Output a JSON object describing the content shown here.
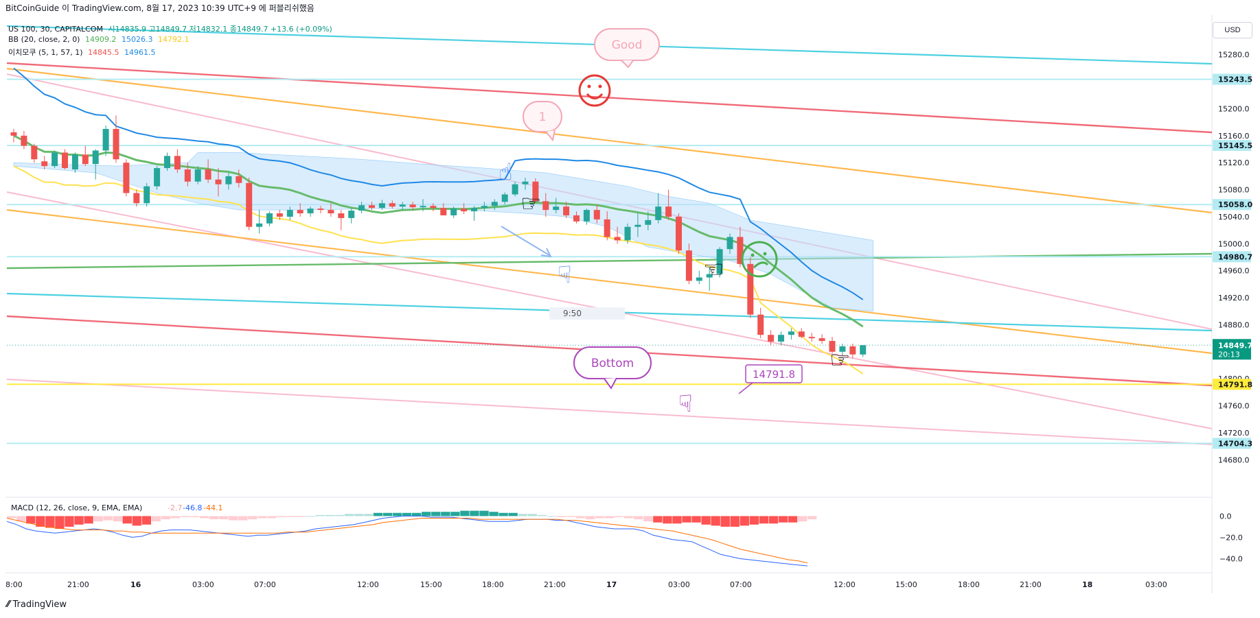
{
  "attribution": "BitCoinGuide 이 TradingView.com, 8월 17, 2023 10:39 UTC+9 에 퍼블리쉬했음",
  "header": {
    "symbol": "US 100, 30, CAPITALCOM",
    "ohlc": "시14835.9  고14849.7  저14832.1  종14849.7  +13.6 (+0.09%)",
    "bb_label": "BB (20, close, 2, 0)",
    "bb_values": [
      "14909.2",
      "15026.3",
      "14792.1"
    ],
    "ichi_label": "이치모쿠 (5, 1, 57, 1)",
    "ichi_values": [
      "14845.5",
      "14961.5"
    ]
  },
  "currency_button": "USD",
  "logo_text": "TradingView",
  "colors": {
    "up": "#26a69a",
    "down": "#ef5350",
    "bb_basis": "#66bb6a",
    "bb_upper": "#1e88e5",
    "bb_lower": "#ffeb3b",
    "cloud": "#bbdefb",
    "cyan": "#4dd0e1",
    "red": "#f06a78",
    "orange": "#ffb74d",
    "pink": "#f8bbd0",
    "green": "#66bb6a",
    "yellow": "#ffeb3b",
    "macd_line": "#2962ff",
    "signal_line": "#ff6d00",
    "purple": "#ab47bc"
  },
  "chart_data": {
    "type": "candlestick",
    "price_axis": {
      "ticks": [
        "15280.0",
        "15240.0",
        "15200.0",
        "15160.0",
        "15120.0",
        "15080.0",
        "15040.0",
        "15000.0",
        "14960.0",
        "14920.0",
        "14880.0",
        "14840.0",
        "14800.0",
        "14760.0",
        "14720.0",
        "14680.0"
      ],
      "range": [
        14660,
        15320
      ]
    },
    "highlighted_levels": [
      {
        "label": "15243.5",
        "value": 15243.5,
        "bg": "#b2ebf2"
      },
      {
        "label": "15145.5",
        "value": 15145.5,
        "bg": "#b2ebf2"
      },
      {
        "label": "15058.0",
        "value": 15058.0,
        "bg": "#b2ebf2"
      },
      {
        "label": "14980.7",
        "value": 14980.7,
        "bg": "#b2ebf2"
      },
      {
        "label": "14791.8",
        "value": 14791.8,
        "bg": "#ffeb3b"
      },
      {
        "label": "14704.3",
        "value": 14704.3,
        "bg": "#b2ebf2"
      }
    ],
    "last_price": {
      "label": "14849.7",
      "countdown": "20:13",
      "value": 14849.7
    },
    "time_axis": [
      "8:00",
      "21:00",
      "16",
      "03:00",
      "07:00",
      "12:00",
      "15:00",
      "18:00",
      "21:00",
      "17",
      "03:00",
      "07:00",
      "12:00",
      "15:00",
      "18:00",
      "21:00",
      "18",
      "03:00"
    ],
    "candles": [
      [
        15165,
        15170,
        15150,
        15160
      ],
      [
        15160,
        15167,
        15140,
        15145
      ],
      [
        15145,
        15148,
        15120,
        15125
      ],
      [
        15122,
        15130,
        15110,
        15115
      ],
      [
        15115,
        15138,
        15112,
        15135
      ],
      [
        15135,
        15140,
        15110,
        15112
      ],
      [
        15110,
        15135,
        15105,
        15132
      ],
      [
        15132,
        15145,
        15115,
        15118
      ],
      [
        15118,
        15140,
        15095,
        15138
      ],
      [
        15138,
        15175,
        15130,
        15170
      ],
      [
        15170,
        15190,
        15120,
        15125
      ],
      [
        15120,
        15125,
        15070,
        15075
      ],
      [
        15075,
        15080,
        15055,
        15060
      ],
      [
        15060,
        15090,
        15055,
        15085
      ],
      [
        15085,
        15115,
        15080,
        15112
      ],
      [
        15112,
        15135,
        15108,
        15130
      ],
      [
        15130,
        15140,
        15105,
        15110
      ],
      [
        15110,
        15120,
        15085,
        15092
      ],
      [
        15092,
        15115,
        15088,
        15110
      ],
      [
        15110,
        15125,
        15090,
        15095
      ],
      [
        15095,
        15112,
        15070,
        15088
      ],
      [
        15088,
        15105,
        15080,
        15100
      ],
      [
        15100,
        15110,
        15083,
        15090
      ],
      [
        15090,
        15098,
        15020,
        15025
      ],
      [
        15025,
        15050,
        15015,
        15030
      ],
      [
        15030,
        15048,
        15026,
        15045
      ],
      [
        15045,
        15050,
        15035,
        15040
      ],
      [
        15040,
        15055,
        15035,
        15050
      ],
      [
        15050,
        15060,
        15040,
        15045
      ],
      [
        15045,
        15055,
        15040,
        15052
      ],
      [
        15052,
        15056,
        15045,
        15050
      ],
      [
        15050,
        15060,
        15040,
        15045
      ],
      [
        15045,
        15050,
        15020,
        15038
      ],
      [
        15038,
        15052,
        15030,
        15049
      ],
      [
        15049,
        15062,
        15045,
        15057
      ],
      [
        15057,
        15062,
        15050,
        15053
      ],
      [
        15053,
        15065,
        15050,
        15060
      ],
      [
        15060,
        15064,
        15052,
        15055
      ],
      [
        15055,
        15062,
        15050,
        15058
      ],
      [
        15058,
        15062,
        15050,
        15054
      ],
      [
        15054,
        15066,
        15048,
        15056
      ],
      [
        15056,
        15060,
        15048,
        15053
      ],
      [
        15053,
        15060,
        15045,
        15042
      ],
      [
        15042,
        15055,
        15038,
        15052
      ],
      [
        15052,
        15060,
        15044,
        15048
      ],
      [
        15048,
        15056,
        15034,
        15053
      ],
      [
        15053,
        15062,
        15048,
        15056
      ],
      [
        15056,
        15066,
        15050,
        15062
      ],
      [
        15062,
        15076,
        15058,
        15073
      ],
      [
        15073,
        15092,
        15070,
        15088
      ],
      [
        15088,
        15098,
        15080,
        15092
      ],
      [
        15092,
        15097,
        15060,
        15063
      ],
      [
        15063,
        15075,
        15040,
        15050
      ],
      [
        15050,
        15068,
        15045,
        15055
      ],
      [
        15055,
        15062,
        15038,
        15042
      ],
      [
        15042,
        15048,
        15030,
        15033
      ],
      [
        15033,
        15052,
        15028,
        15050
      ],
      [
        15050,
        15058,
        15030,
        15036
      ],
      [
        15036,
        15048,
        15005,
        15010
      ],
      [
        15010,
        15025,
        15000,
        15005
      ],
      [
        15005,
        15030,
        15000,
        15025
      ],
      [
        15025,
        15045,
        15010,
        15028
      ],
      [
        15028,
        15048,
        15020,
        15035
      ],
      [
        15035,
        15075,
        15030,
        15055
      ],
      [
        15055,
        15080,
        15035,
        15040
      ],
      [
        15040,
        15045,
        14985,
        14990
      ],
      [
        14990,
        15000,
        14940,
        14945
      ],
      [
        14945,
        14960,
        14940,
        14950
      ],
      [
        14950,
        14965,
        14930,
        14955
      ],
      [
        14955,
        14995,
        14950,
        14992
      ],
      [
        14992,
        15015,
        14985,
        15010
      ],
      [
        15010,
        15025,
        14965,
        14970
      ],
      [
        14970,
        14980,
        14890,
        14895
      ],
      [
        14895,
        14905,
        14860,
        14865
      ],
      [
        14865,
        14872,
        14850,
        14855
      ],
      [
        14855,
        14870,
        14850,
        14865
      ],
      [
        14865,
        14875,
        14858,
        14870
      ],
      [
        14870,
        14875,
        14860,
        14862
      ],
      [
        14862,
        14868,
        14855,
        14860
      ],
      [
        14860,
        14866,
        14852,
        14856
      ],
      [
        14856,
        14862,
        14838,
        14840
      ],
      [
        14840,
        14852,
        14835,
        14848
      ],
      [
        14848,
        14852,
        14830,
        14836
      ],
      [
        14835.9,
        14849.7,
        14832.1,
        14849.7
      ]
    ],
    "macd": {
      "label": "MACD (12, 26, close, 9, EMA, EMA)",
      "values": [
        "-2.7",
        "-46.8",
        "-44.1"
      ],
      "ticks": [
        "0.0",
        "−20.0",
        "−40.0"
      ],
      "hist": [
        -2,
        -5,
        -7,
        -10,
        -11,
        -12,
        -10,
        -8,
        -7,
        -5,
        -4,
        -5,
        -7,
        -9,
        -8,
        -5,
        -3,
        -2,
        -1,
        -1,
        -2,
        -3,
        -3,
        -4,
        -4,
        -3,
        -2,
        -2,
        -1,
        -1,
        -1,
        0,
        1,
        1,
        1,
        2,
        2,
        2,
        3,
        3,
        3,
        3,
        3,
        4,
        4,
        4,
        4,
        5,
        5,
        5,
        4,
        3,
        3,
        2,
        2,
        1,
        0,
        -1,
        -1,
        -2,
        -3,
        -2,
        -2,
        -1,
        -2,
        -3,
        -5,
        -6,
        -7,
        -7,
        -6,
        -6,
        -8,
        -9,
        -10,
        -10,
        -9,
        -8,
        -7,
        -7,
        -6,
        -6,
        -5,
        -3
      ],
      "macd_line": [
        -5,
        -8,
        -12,
        -14,
        -15,
        -16,
        -15,
        -14,
        -13,
        -12,
        -13,
        -15,
        -18,
        -20,
        -19,
        -16,
        -14,
        -13,
        -13,
        -13,
        -14,
        -15,
        -16,
        -17,
        -18,
        -19,
        -18,
        -18,
        -17,
        -16,
        -15,
        -14,
        -12,
        -11,
        -10,
        -9,
        -8,
        -6,
        -4,
        -2,
        -1,
        0,
        0,
        0,
        -1,
        -1,
        -1,
        -2,
        -3,
        -4,
        -5,
        -5,
        -5,
        -4,
        -3,
        -3,
        -3,
        -4,
        -4,
        -6,
        -8,
        -10,
        -11,
        -12,
        -12,
        -12,
        -14,
        -18,
        -20,
        -22,
        -23,
        -24,
        -28,
        -32,
        -36,
        -38,
        -40,
        -41,
        -42,
        -43,
        -44,
        -45,
        -46,
        -46.8
      ],
      "signal_line": [
        -2,
        -4,
        -6,
        -8,
        -10,
        -11,
        -12,
        -13,
        -13,
        -13,
        -13,
        -14,
        -14,
        -15,
        -15,
        -16,
        -16,
        -16,
        -16,
        -16,
        -16,
        -16,
        -16,
        -16,
        -16,
        -16,
        -16,
        -16,
        -16,
        -15,
        -15,
        -15,
        -14,
        -13,
        -12,
        -11,
        -10,
        -9,
        -8,
        -6,
        -5,
        -4,
        -3,
        -2,
        -2,
        -2,
        -2,
        -2,
        -2,
        -3,
        -3,
        -3,
        -3,
        -3,
        -3,
        -3,
        -3,
        -3,
        -4,
        -4,
        -5,
        -6,
        -7,
        -8,
        -9,
        -10,
        -11,
        -12,
        -13,
        -14,
        -16,
        -18,
        -20,
        -22,
        -25,
        -28,
        -31,
        -33,
        -35,
        -37,
        -39,
        -41,
        -42,
        -44.1
      ]
    }
  },
  "annotations": {
    "good": "Good",
    "one": "1",
    "bottom": "Bottom",
    "price_callout": "14791.8",
    "time_label": "9:50"
  }
}
